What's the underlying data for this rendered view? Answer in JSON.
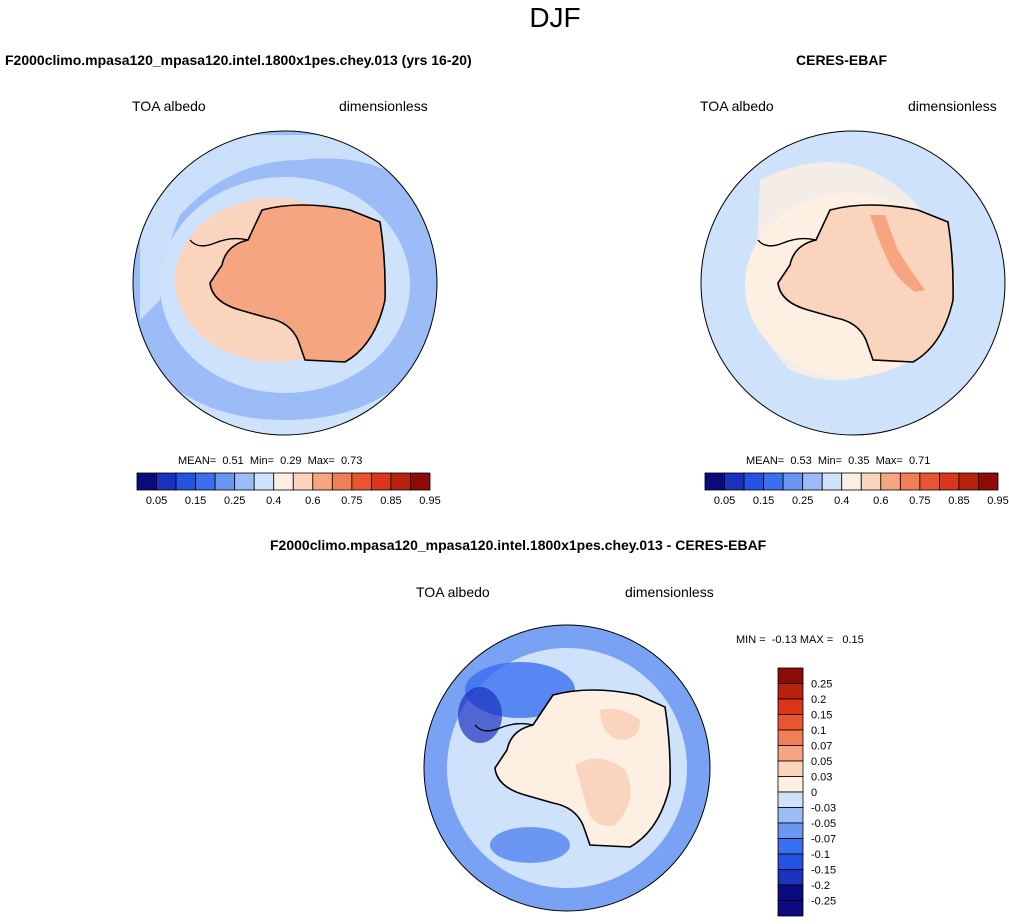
{
  "figure_title": "DJF",
  "chart_data": [
    {
      "type": "heatmap",
      "projection": "south-polar stereographic",
      "title": "F2000climo.mpasa120_mpasa120.intel.1800x1pes.chey.013 (yrs 16-20)",
      "left_subtitle": "TOA albedo",
      "right_subtitle": "dimensionless",
      "stats": {
        "mean": 0.51,
        "min": 0.29,
        "max": 0.73
      },
      "stats_text": "MEAN=  0.51  Min=  0.29  Max=  0.73",
      "colorbar": {
        "orientation": "horizontal",
        "levels": [
          0.05,
          0.1,
          0.15,
          0.2,
          0.25,
          0.3,
          0.4,
          0.5,
          0.6,
          0.7,
          0.75,
          0.8,
          0.85,
          0.9,
          0.95
        ],
        "tick_labels": [
          "0.05",
          "0.15",
          "0.25",
          "0.4",
          "0.6",
          "0.75",
          "0.85",
          "0.95"
        ]
      }
    },
    {
      "type": "heatmap",
      "projection": "south-polar stereographic",
      "title": "CERES-EBAF",
      "left_subtitle": "TOA albedo",
      "right_subtitle": "dimensionless",
      "stats": {
        "mean": 0.53,
        "min": 0.35,
        "max": 0.71
      },
      "stats_text": "MEAN=  0.53  Min=  0.35  Max=  0.71",
      "colorbar": {
        "orientation": "horizontal",
        "levels": [
          0.05,
          0.1,
          0.15,
          0.2,
          0.25,
          0.3,
          0.4,
          0.5,
          0.6,
          0.7,
          0.75,
          0.8,
          0.85,
          0.9,
          0.95
        ],
        "tick_labels": [
          "0.05",
          "0.15",
          "0.25",
          "0.4",
          "0.6",
          "0.75",
          "0.85",
          "0.95"
        ]
      }
    },
    {
      "type": "heatmap",
      "projection": "south-polar stereographic",
      "title": "F2000climo.mpasa120_mpasa120.intel.1800x1pes.chey.013 - CERES-EBAF",
      "left_subtitle": "TOA albedo",
      "right_subtitle": "dimensionless",
      "stats": {
        "min": -0.13,
        "max": 0.15
      },
      "stats_text": "MIN =  -0.13 MAX =   0.15",
      "colorbar": {
        "orientation": "vertical",
        "levels": [
          0.25,
          0.2,
          0.15,
          0.1,
          0.07,
          0.05,
          0.03,
          0,
          -0.03,
          -0.05,
          -0.07,
          -0.1,
          -0.15,
          -0.2,
          -0.25
        ],
        "tick_labels": [
          "0.25",
          "0.2",
          "0.15",
          "0.1",
          "0.07",
          "0.05",
          "0.03",
          "0",
          "-0.03",
          "-0.05",
          "-0.07",
          "-0.1",
          "-0.15",
          "-0.2",
          "-0.25"
        ]
      }
    }
  ],
  "colors": {
    "abs_palette": [
      "#0b0b7e",
      "#1b32bf",
      "#2452e3",
      "#3a6ff0",
      "#6b97f2",
      "#9bbcf6",
      "#cfe2fb",
      "#fdf0e2",
      "#fbd4bd",
      "#f5a680",
      "#f07f55",
      "#ea5530",
      "#d9361a",
      "#b7230f",
      "#8e0c07"
    ],
    "diff_palette": [
      "#8e0c07",
      "#b7230f",
      "#d9361a",
      "#ea5530",
      "#f07f55",
      "#f5a680",
      "#fbd4bd",
      "#fdf0e2",
      "#cfe2fb",
      "#9bbcf6",
      "#6b97f2",
      "#3a6ff0",
      "#2452e3",
      "#1b32bf",
      "#0b0b7e"
    ]
  }
}
